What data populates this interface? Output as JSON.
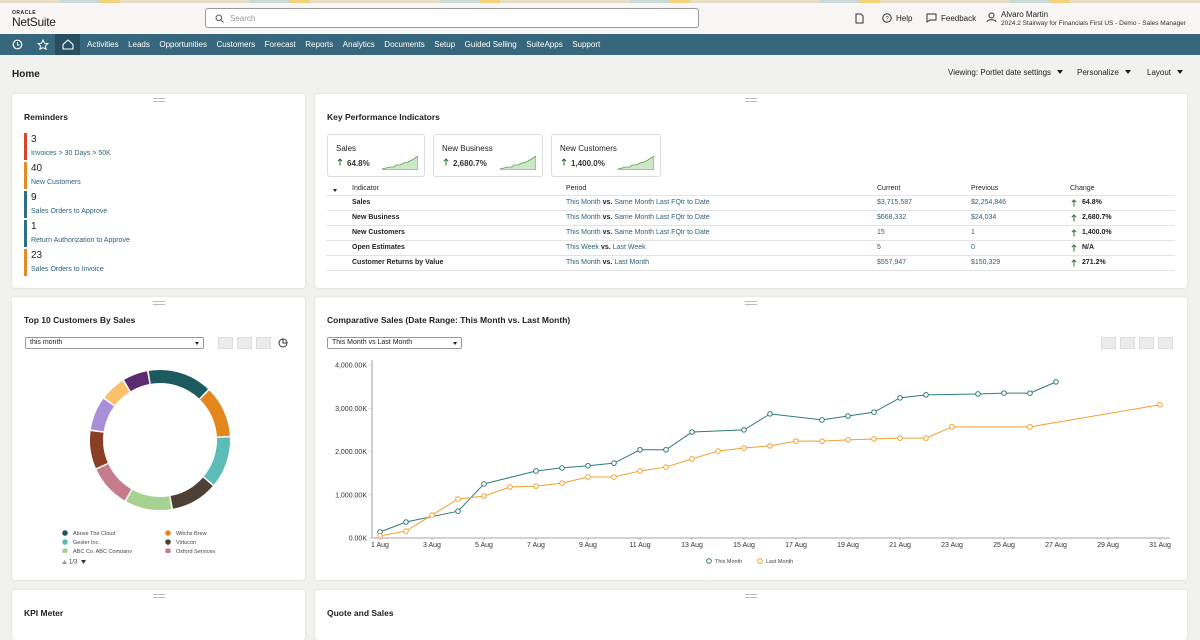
{
  "header": {
    "logo_top": "ORACLE",
    "logo": "NetSuite",
    "search_placeholder": "Search",
    "help": "Help",
    "feedback": "Feedback",
    "user_name": "Alvaro Martin",
    "user_role": "2024.2 Stairway for Financials First US - Demo - Sales Manager"
  },
  "nav": [
    "Activities",
    "Leads",
    "Opportunities",
    "Customers",
    "Forecast",
    "Reports",
    "Analytics",
    "Documents",
    "Setup",
    "Guided Selling",
    "SuiteApps",
    "Support"
  ],
  "page": {
    "title": "Home",
    "viewing": "Viewing: Portlet date settings",
    "personalize": "Personalize",
    "layout": "Layout"
  },
  "reminders": {
    "title": "Reminders",
    "items": [
      {
        "count": 3,
        "label": "Invoices > 30 Days > 50K",
        "color": "#d8432e"
      },
      {
        "count": 40,
        "label": "New Customers",
        "color": "#e58a26"
      },
      {
        "count": 9,
        "label": "Sales Orders to Approve",
        "color": "#2f6f86"
      },
      {
        "count": 1,
        "label": "Return Authorization to Approve",
        "color": "#2f6f86"
      },
      {
        "count": 23,
        "label": "Sales Orders to Invoice",
        "color": "#e58a26"
      }
    ]
  },
  "kpi": {
    "title": "Key Performance Indicators",
    "cards": [
      {
        "name": "Sales",
        "change": "64.8%"
      },
      {
        "name": "New Business",
        "change": "2,680.7%"
      },
      {
        "name": "New Customers",
        "change": "1,400.0%"
      }
    ],
    "columns": [
      "Indicator",
      "Period",
      "Current",
      "Previous",
      "Change"
    ],
    "joiner": "vs.",
    "rows": [
      {
        "indicator": "Sales",
        "from": "This Month",
        "to": "Same Month Last FQtr to Date",
        "current": "$3,715,587",
        "previous": "$2,254,846",
        "change": "64.8%"
      },
      {
        "indicator": "New Business",
        "from": "This Month",
        "to": "Same Month Last FQtr to Date",
        "current": "$668,332",
        "previous": "$24,034",
        "change": "2,680.7%"
      },
      {
        "indicator": "New Customers",
        "from": "This Month",
        "to": "Same Month Last FQtr to Date",
        "current": "15",
        "previous": "1",
        "change": "1,400.0%"
      },
      {
        "indicator": "Open Estimates",
        "from": "This Week",
        "to": "Last Week",
        "current": "5",
        "previous": "0",
        "change": "N/A"
      },
      {
        "indicator": "Customer Returns by Value",
        "from": "This Month",
        "to": "Last Month",
        "current": "$557,947",
        "previous": "$150,329",
        "change": "271.2%"
      }
    ]
  },
  "chart_data": [
    {
      "type": "donut",
      "title": "Top 10 Customers By Sales",
      "filter": "this month",
      "categories": [
        "Above The Cloud",
        "Witchs Brew",
        "Gester Inc.",
        "Virtucon",
        "ABC Co. ABC Company",
        "Oxford Services",
        null,
        null,
        null,
        null
      ],
      "values": [
        15,
        12,
        12,
        11,
        11,
        10,
        9,
        8,
        6,
        6
      ],
      "colors": [
        "#1d5a60",
        "#e3861c",
        "#5cbdb8",
        "#4d4037",
        "#a6d291",
        "#c57c8d",
        "#8a3e24",
        "#a98fd8",
        "#fbc06a",
        "#5b2c6f"
      ],
      "legend_page": "1/3"
    },
    {
      "type": "line",
      "title": "Comparative Sales (Date Range: This Month vs. Last Month)",
      "filter": "This Month vs Last Month",
      "xlim": [
        1,
        31
      ],
      "xticks": [
        {
          "value": 1,
          "label": "1 Aug"
        },
        {
          "value": 3,
          "label": "3 Aug"
        },
        {
          "value": 5,
          "label": "5 Aug"
        },
        {
          "value": 7,
          "label": "7 Aug"
        },
        {
          "value": 9,
          "label": "9 Aug"
        },
        {
          "value": 11,
          "label": "11 Aug"
        },
        {
          "value": 13,
          "label": "13 Aug"
        },
        {
          "value": 15,
          "label": "15 Aug"
        },
        {
          "value": 17,
          "label": "17 Aug"
        },
        {
          "value": 19,
          "label": "19 Aug"
        },
        {
          "value": 21,
          "label": "21 Aug"
        },
        {
          "value": 23,
          "label": "23 Aug"
        },
        {
          "value": 25,
          "label": "25 Aug"
        },
        {
          "value": 27,
          "label": "27 Aug"
        },
        {
          "value": 29,
          "label": "29 Aug"
        },
        {
          "value": 31,
          "label": "31 Aug"
        }
      ],
      "ylim": [
        0,
        4000000
      ],
      "yticks": [
        {
          "value": 0,
          "label": "0.00K"
        },
        {
          "value": 1000000,
          "label": "1,000.00K"
        },
        {
          "value": 2000000,
          "label": "2,000.00K"
        },
        {
          "value": 3000000,
          "label": "3,000.00K"
        },
        {
          "value": 4000000,
          "label": "4,000.00K"
        }
      ],
      "grid": false,
      "series": [
        {
          "name": "This Month",
          "color": "#2e7b79",
          "x": [
            1,
            2,
            4,
            5,
            7,
            8,
            9,
            10,
            11,
            12,
            13,
            15,
            16,
            18,
            19,
            20,
            21,
            22,
            24,
            25,
            26,
            27
          ],
          "values": [
            140000,
            370000,
            620000,
            1250000,
            1550000,
            1620000,
            1670000,
            1730000,
            2040000,
            2040000,
            2450000,
            2500000,
            2870000,
            2730000,
            2820000,
            2910000,
            3240000,
            3310000,
            3330000,
            3350000,
            3350000,
            3610000
          ]
        },
        {
          "name": "Last Month",
          "color": "#f0a030",
          "x": [
            1,
            2,
            3,
            4,
            5,
            6,
            7,
            8,
            9,
            10,
            11,
            12,
            13,
            14,
            15,
            16,
            17,
            18,
            19,
            20,
            21,
            22,
            23,
            26,
            31
          ],
          "values": [
            50000,
            160000,
            530000,
            900000,
            970000,
            1180000,
            1200000,
            1270000,
            1410000,
            1410000,
            1550000,
            1640000,
            1830000,
            2010000,
            2080000,
            2130000,
            2240000,
            2240000,
            2270000,
            2290000,
            2310000,
            2310000,
            2570000,
            2570000,
            3080000
          ]
        }
      ]
    }
  ],
  "bottom": {
    "kpi_meter": "KPI Meter",
    "quote_sales": "Quote and Sales"
  }
}
